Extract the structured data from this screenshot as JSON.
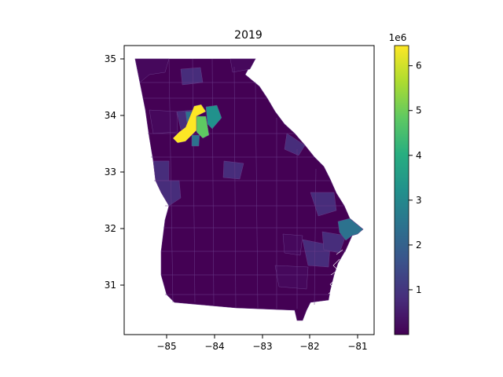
{
  "title": "2019",
  "map": {
    "x_ticks": [
      "−85",
      "−84",
      "−83",
      "−82",
      "−81"
    ],
    "y_ticks": [
      "31",
      "32",
      "33",
      "34",
      "35"
    ],
    "region": "Georgia counties",
    "low_color": "#440154",
    "colors": {
      "dark": "#440154",
      "dark2": "#46085c",
      "indigo": "#472d7b",
      "blue": "#2c728e",
      "teal": "#21918c",
      "green": "#5ec962",
      "yellow": "#fde725"
    }
  },
  "colorbar": {
    "multiplier": "1e6",
    "ticks": [
      "1",
      "2",
      "3",
      "4",
      "5",
      "6"
    ],
    "min": 0,
    "max": 6.45,
    "stops": [
      "#440154",
      "#472d7b",
      "#3b528b",
      "#2c728e",
      "#21918c",
      "#28ae80",
      "#5ec962",
      "#addc30",
      "#fde725"
    ]
  }
}
